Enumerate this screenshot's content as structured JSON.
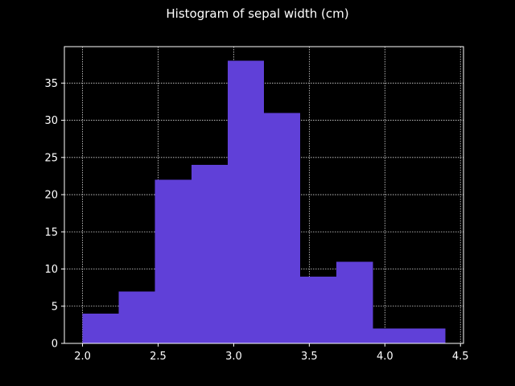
{
  "chart_data": {
    "type": "bar",
    "title": "Histogram of sepal width (cm)",
    "xlabel": "",
    "ylabel": "",
    "bins": [
      {
        "start": 2.0,
        "end": 2.24,
        "count": 4
      },
      {
        "start": 2.24,
        "end": 2.48,
        "count": 7
      },
      {
        "start": 2.48,
        "end": 2.72,
        "count": 22
      },
      {
        "start": 2.72,
        "end": 2.96,
        "count": 24
      },
      {
        "start": 2.96,
        "end": 3.2,
        "count": 38
      },
      {
        "start": 3.2,
        "end": 3.44,
        "count": 31
      },
      {
        "start": 3.44,
        "end": 3.68,
        "count": 9
      },
      {
        "start": 3.68,
        "end": 3.92,
        "count": 11
      },
      {
        "start": 3.92,
        "end": 4.16,
        "count": 2
      },
      {
        "start": 4.16,
        "end": 4.4,
        "count": 2
      }
    ],
    "xlim": [
      1.88,
      4.52
    ],
    "ylim": [
      0,
      39.9
    ],
    "xticks": [
      "2.0",
      "2.5",
      "3.0",
      "3.5",
      "4.0",
      "4.5"
    ],
    "yticks": [
      "0",
      "5",
      "10",
      "15",
      "20",
      "25",
      "30",
      "35"
    ],
    "grid": true,
    "bar_color": "#6040d8",
    "background_color": "#000000",
    "foreground_color": "#ffffff"
  }
}
